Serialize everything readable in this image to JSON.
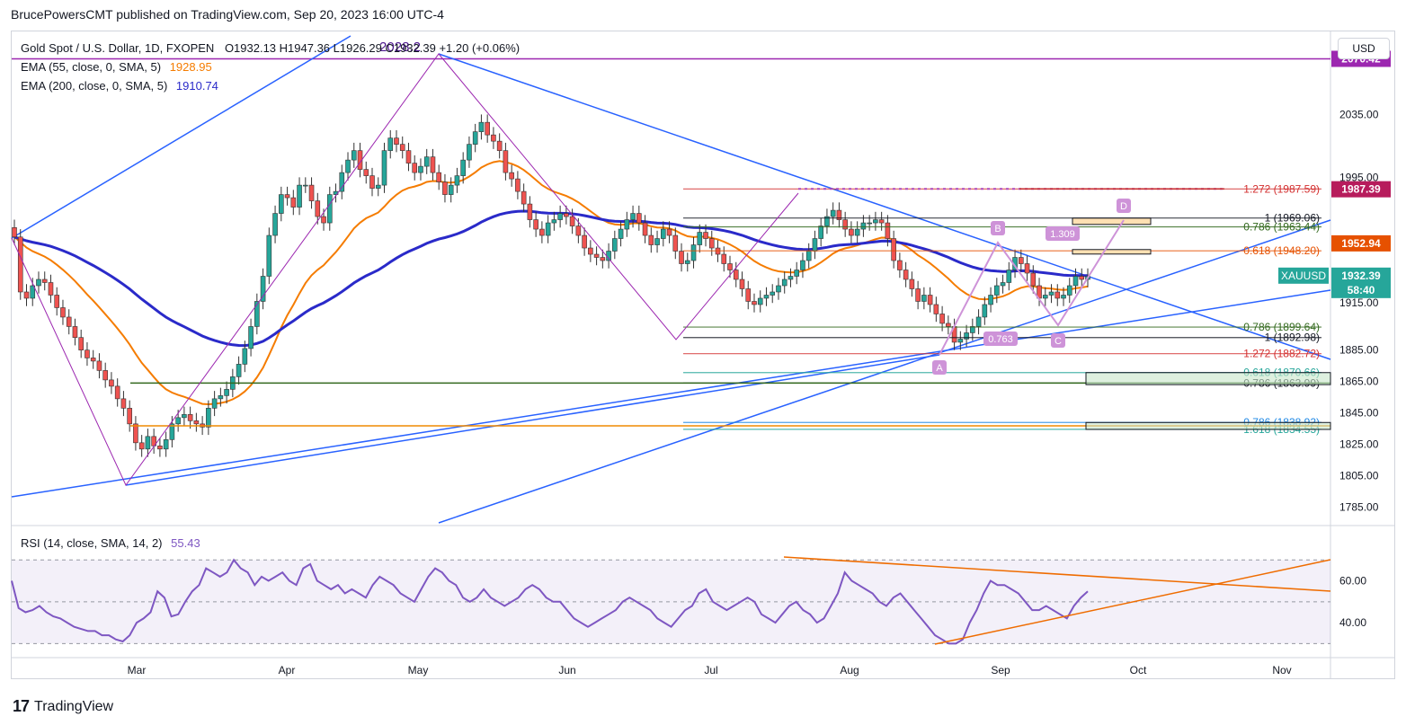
{
  "header": {
    "publisher": "BrucePowersCMT published on TradingView.com, Sep 20, 2023 16:00 UTC-4"
  },
  "legend": {
    "symbol": "Gold Spot / U.S. Dollar, 1D, FXOPEN",
    "ohlc": "O1932.13  H1947.36  L1926.29  C1932.39  +1.20 (+0.06%)",
    "ema55_label": "EMA (55, close, 0, SMA, 5)",
    "ema55_value": "1928.95",
    "ema200_label": "EMA (200, close, 0, SMA, 5)",
    "ema200_value": "1910.74",
    "rsi_label": "RSI (14, close, SMA, 14, 2)",
    "rsi_value": "55.43"
  },
  "currency_button": "USD",
  "footer": {
    "brand": "TradingView",
    "logo": "17"
  },
  "colors": {
    "up": "#26a69a",
    "down": "#ef5350",
    "ema55": "#f57c00",
    "ema200": "#2a2ac9",
    "trend": "#2962ff",
    "fib_purple": "#9c27b0",
    "rsi": "#7e57c2"
  },
  "chart_data": {
    "type": "candlestick",
    "price_axis": {
      "ticks": [
        "2035.00",
        "1995.00",
        "1915.00",
        "1885.00",
        "1865.00",
        "1845.00",
        "1825.00",
        "1805.00",
        "1785.00"
      ],
      "ylim": [
        1775,
        2085
      ]
    },
    "rsi_axis": {
      "ticks": [
        "60.00",
        "40.00"
      ],
      "ylim": [
        25,
        80
      ]
    },
    "x_axis": {
      "months": [
        "Mar",
        "Apr",
        "May",
        "Jun",
        "Jul",
        "Aug",
        "Sep",
        "Oct",
        "Nov"
      ]
    },
    "price_tags": [
      {
        "label": "2070.42",
        "value": 2070.42,
        "color": "#9c27b0"
      },
      {
        "label": "1987.39",
        "value": 1987.39,
        "color": "#b71c5c"
      },
      {
        "label": "1952.94",
        "value": 1952.94,
        "color": "#e65100"
      },
      {
        "label": "XAUUSD",
        "value": 1932.39,
        "color": "#26a69a"
      },
      {
        "label": "1932.39",
        "value": 1932.39,
        "color": "#26a69a"
      },
      {
        "label": "58:40",
        "value": 1925.5,
        "color": "#26a69a"
      }
    ],
    "fib_labels": [
      {
        "text": "1.272 (1987.59)",
        "value": 1987.59,
        "color": "#d32f2f"
      },
      {
        "text": "1 (1969.06)",
        "value": 1969.06,
        "color": "#131722"
      },
      {
        "text": "0.786 (1963.44)",
        "value": 1963.44,
        "color": "#33691e"
      },
      {
        "text": "0.618 (1948.20)",
        "value": 1948.2,
        "color": "#e65100"
      },
      {
        "text": "0.786 (1899.64)",
        "value": 1899.64,
        "color": "#33691e"
      },
      {
        "text": "1 (1892.98)",
        "value": 1892.98,
        "color": "#131722"
      },
      {
        "text": "1.272 (1882.72)",
        "value": 1882.72,
        "color": "#d32f2f"
      },
      {
        "text": "0.618 (1870.66)",
        "value": 1870.66,
        "color": "#26a69a"
      },
      {
        "text": "0.786 (1863.99)",
        "value": 1863.99,
        "color": "#131722"
      },
      {
        "text": "0.786 (1838.92)",
        "value": 1838.92,
        "color": "#1e88e5"
      },
      {
        "text": "1.618 (1834.55)",
        "value": 1834.55,
        "color": "#26a69a"
      }
    ],
    "pattern_points": [
      "A",
      "B",
      "C",
      "D"
    ],
    "pattern_ratios": [
      "0.763",
      "1.309"
    ],
    "pattern_top_label": "2028.2",
    "closes": [
      1957,
      1922,
      1918,
      1926,
      1930,
      1928,
      1920,
      1912,
      1906,
      1900,
      1893,
      1885,
      1880,
      1878,
      1872,
      1866,
      1862,
      1854,
      1848,
      1838,
      1826,
      1822,
      1830,
      1824,
      1822,
      1828,
      1838,
      1842,
      1844,
      1840,
      1838,
      1836,
      1848,
      1854,
      1856,
      1860,
      1868,
      1876,
      1886,
      1900,
      1916,
      1932,
      1958,
      1972,
      1984,
      1982,
      1976,
      1990,
      1990,
      1980,
      1970,
      1966,
      1984,
      1986,
      1998,
      2006,
      2012,
      2000,
      1996,
      1988,
      1990,
      2012,
      2020,
      2016,
      2012,
      2004,
      1998,
      2002,
      2008,
      1998,
      1992,
      1984,
      1990,
      1996,
      2006,
      2016,
      2024,
      2030,
      2022,
      2018,
      2012,
      1998,
      1994,
      1986,
      1978,
      1968,
      1962,
      1958,
      1966,
      1968,
      1972,
      1970,
      1964,
      1958,
      1950,
      1946,
      1944,
      1942,
      1948,
      1956,
      1962,
      1968,
      1972,
      1966,
      1958,
      1952,
      1956,
      1962,
      1958,
      1948,
      1940,
      1942,
      1952,
      1960,
      1956,
      1950,
      1946,
      1940,
      1936,
      1930,
      1924,
      1916,
      1914,
      1918,
      1920,
      1922,
      1926,
      1930,
      1932,
      1936,
      1942,
      1948,
      1956,
      1964,
      1970,
      1974,
      1968,
      1962,
      1958,
      1962,
      1966,
      1966,
      1968,
      1966,
      1956,
      1942,
      1936,
      1930,
      1924,
      1916,
      1920,
      1914,
      1908,
      1902,
      1900,
      1890,
      1892,
      1896,
      1900,
      1906,
      1914,
      1920,
      1926,
      1928,
      1936,
      1944,
      1940,
      1934,
      1926,
      1918,
      1920,
      1922,
      1918,
      1920,
      1926,
      1932,
      1930,
      1932
    ],
    "rsi": [
      60,
      47,
      45,
      46,
      48,
      45,
      43,
      42,
      40,
      38,
      37,
      36,
      36,
      34,
      34,
      32,
      31,
      34,
      40,
      42,
      45,
      55,
      52,
      43,
      44,
      50,
      55,
      58,
      66,
      64,
      62,
      64,
      70,
      66,
      64,
      58,
      62,
      60,
      62,
      64,
      60,
      58,
      66,
      68,
      60,
      58,
      56,
      58,
      54,
      56,
      54,
      52,
      58,
      62,
      60,
      58,
      54,
      52,
      50,
      56,
      62,
      66,
      64,
      60,
      58,
      52,
      50,
      52,
      56,
      52,
      50,
      48,
      50,
      52,
      56,
      58,
      56,
      52,
      50,
      50,
      46,
      42,
      40,
      38,
      40,
      42,
      44,
      46,
      50,
      52,
      50,
      48,
      46,
      42,
      40,
      38,
      42,
      46,
      48,
      54,
      56,
      50,
      48,
      46,
      48,
      50,
      52,
      50,
      44,
      42,
      40,
      44,
      48,
      50,
      46,
      44,
      40,
      42,
      48,
      54,
      64,
      60,
      58,
      56,
      54,
      50,
      48,
      52,
      54,
      50,
      46,
      42,
      38,
      34,
      32,
      30,
      30,
      32,
      40,
      46,
      54,
      60,
      58,
      58,
      56,
      54,
      50,
      46,
      46,
      48,
      46,
      44,
      42,
      48,
      52,
      55
    ]
  }
}
